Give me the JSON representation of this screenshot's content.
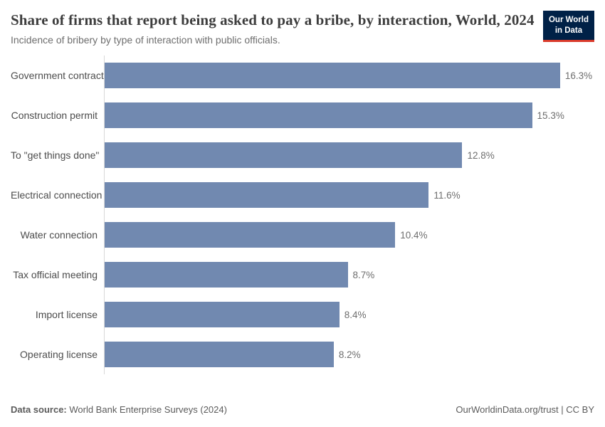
{
  "header": {
    "title": "Share of firms that report being asked to pay a bribe, by interaction, World, 2024",
    "subtitle": "Incidence of bribery by type of interaction with public officials.",
    "logo": {
      "line1": "Our World",
      "line2": "in Data"
    }
  },
  "chart_data": {
    "type": "bar",
    "orientation": "horizontal",
    "title": "Share of firms that report being asked to pay a bribe, by interaction, World, 2024",
    "subtitle": "Incidence of bribery by type of interaction with public officials.",
    "categories": [
      "Government contract",
      "Construction permit",
      "To \"get things done\"",
      "Electrical connection",
      "Water connection",
      "Tax official meeting",
      "Import license",
      "Operating license"
    ],
    "values": [
      16.3,
      15.3,
      12.8,
      11.6,
      10.4,
      8.7,
      8.4,
      8.2
    ],
    "value_labels": [
      "16.3%",
      "15.3%",
      "12.8%",
      "11.6%",
      "10.4%",
      "8.7%",
      "8.4%",
      "8.2%"
    ],
    "xlabel": "",
    "ylabel": "",
    "xlim": [
      0,
      16.3
    ],
    "grid": false,
    "legend": null,
    "bar_color": "#7189b0"
  },
  "footer": {
    "source_label": "Data source:",
    "source_text": " World Bank Enterprise Surveys (2024)",
    "credit": "OurWorldinData.org/trust | CC BY"
  },
  "colors": {
    "bar": "#7189b0",
    "axis_line": "#d9d9d9",
    "title_text": "#3d3d3d",
    "muted_text": "#6e6e6e",
    "logo_navy": "#002147",
    "logo_red": "#d93a2b"
  }
}
